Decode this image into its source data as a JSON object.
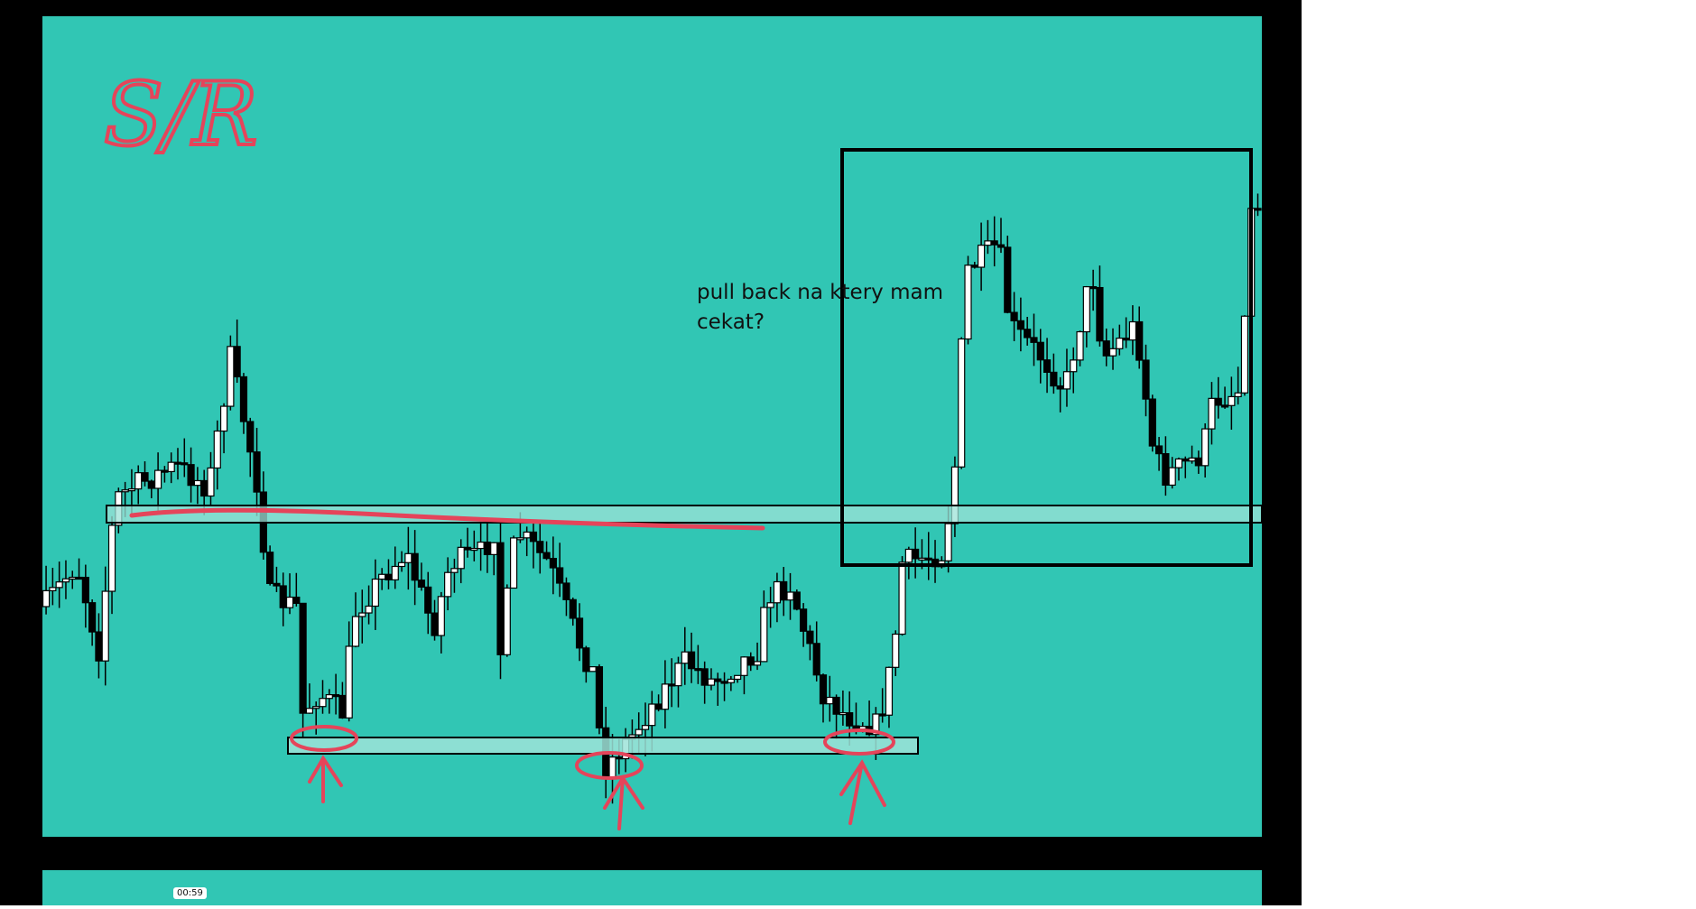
{
  "annotation": {
    "handwritten_label": "S/R",
    "question": "pull back na ktery mam cekat?"
  },
  "player": {
    "timestamp": "00:59"
  }
}
